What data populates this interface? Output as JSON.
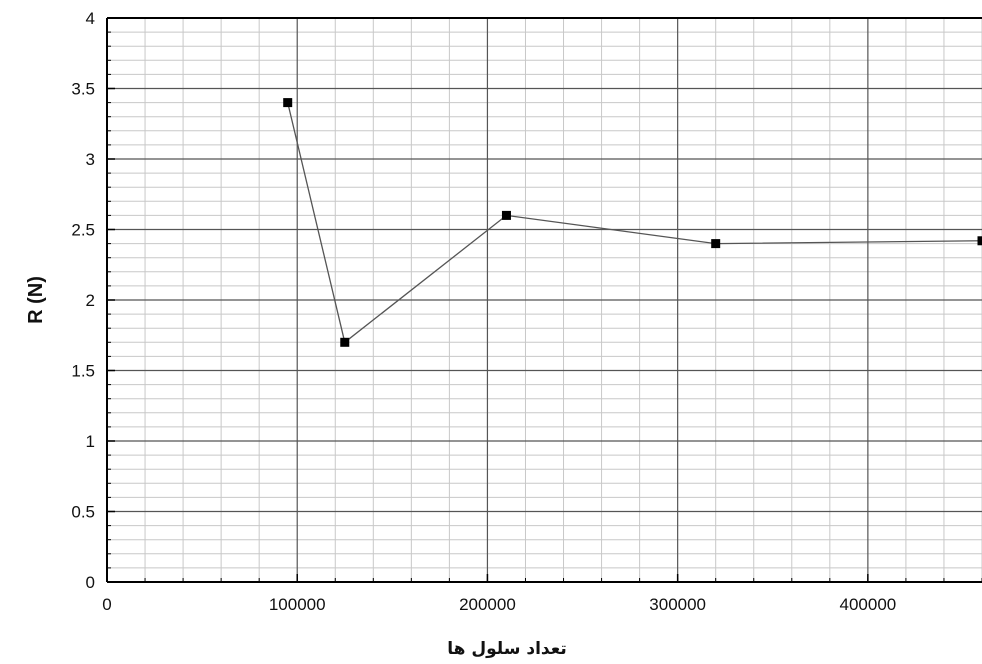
{
  "chart_data": {
    "type": "line",
    "title": "",
    "xlabel": "تعداد سلول ها",
    "ylabel": "R (N)",
    "xlim": [
      0,
      460000
    ],
    "ylim": [
      0,
      4
    ],
    "x_ticks": [
      0,
      100000,
      200000,
      300000,
      400000
    ],
    "x_tick_labels": [
      "0",
      "100000",
      "200000",
      "300000",
      "400000"
    ],
    "y_ticks": [
      0,
      0.5,
      1,
      1.5,
      2,
      2.5,
      3,
      3.5,
      4
    ],
    "y_tick_labels": [
      "0",
      "0.5",
      "1",
      "1.5",
      "2",
      "2.5",
      "3",
      "3.5",
      "4"
    ],
    "x_major_grid_step": 100000,
    "x_minor_grid_step": 20000,
    "y_major_grid_step": 0.5,
    "y_minor_grid_step": 0.1,
    "grid": true,
    "marker": "square",
    "series": [
      {
        "x": [
          95000,
          125000,
          210000,
          320000,
          460000
        ],
        "y": [
          3.4,
          1.7,
          2.6,
          2.4,
          2.42
        ]
      }
    ],
    "colors": {
      "line": "#555555",
      "marker": "#000000",
      "major_grid": "#555555",
      "minor_grid": "#c8c8c8",
      "axis": "#000000"
    }
  }
}
